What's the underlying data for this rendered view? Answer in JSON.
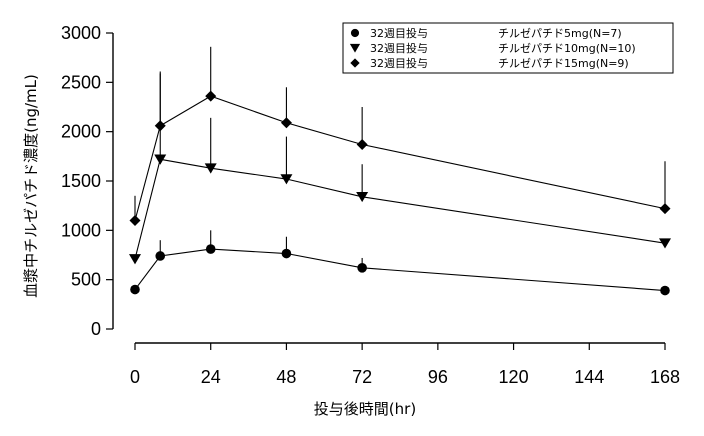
{
  "chart_data": {
    "type": "line",
    "xlabel": "投与後時間(hr)",
    "ylabel": "血漿中チルゼパチド濃度(ng/mL)",
    "xlim": [
      0,
      168
    ],
    "ylim": [
      0,
      3000
    ],
    "x_ticks": [
      0,
      24,
      48,
      72,
      96,
      120,
      144,
      168
    ],
    "y_ticks": [
      0,
      500,
      1000,
      1500,
      2000,
      2500,
      3000
    ],
    "grid": false,
    "legend_position": "top-right",
    "legend_framed": true,
    "series": [
      {
        "name": "チルゼパチド5mg(N=7)",
        "legend_prefix": "32週目投与",
        "marker": "circle",
        "x": [
          0,
          8,
          24,
          48,
          72,
          168
        ],
        "values": [
          400,
          740,
          810,
          765,
          620,
          390
        ],
        "error_plus": [
          0,
          160,
          190,
          170,
          100,
          0
        ],
        "error_direction": "up"
      },
      {
        "name": "チルゼパチド10mg(N=10)",
        "legend_prefix": "32週目投与",
        "marker": "triangle-down",
        "x": [
          0,
          8,
          24,
          48,
          72,
          168
        ],
        "values": [
          710,
          1720,
          1630,
          1520,
          1340,
          870
        ],
        "error_plus": [
          0,
          870,
          510,
          430,
          330,
          0
        ],
        "error_direction": "up"
      },
      {
        "name": "チルゼパチド15mg(N=9)",
        "legend_prefix": "32週目投与",
        "marker": "diamond",
        "x": [
          0,
          8,
          24,
          48,
          72,
          168
        ],
        "values": [
          1100,
          2060,
          2360,
          2090,
          1870,
          1220
        ],
        "error_plus": [
          250,
          550,
          500,
          360,
          380,
          480
        ],
        "error_direction": "up"
      }
    ]
  }
}
